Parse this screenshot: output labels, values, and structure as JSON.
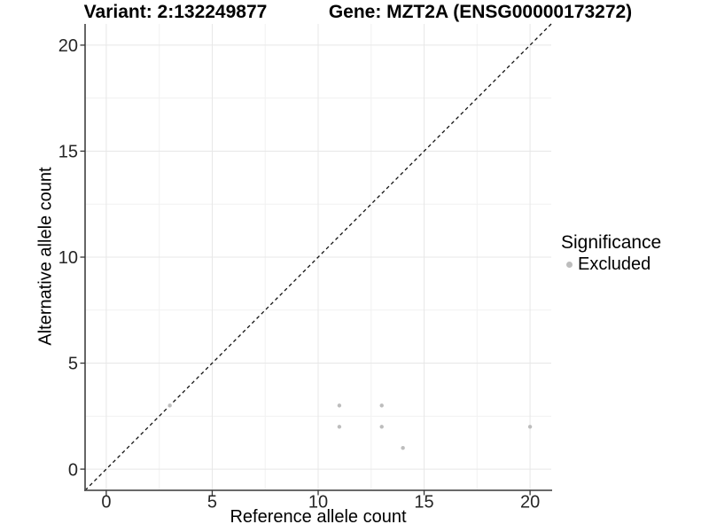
{
  "chart_data": {
    "type": "scatter",
    "titles": {
      "left": "Variant: 2:132249877",
      "right": "Gene: MZT2A (ENSG00000173272)"
    },
    "xlabel": "Reference allele count",
    "ylabel": "Alternative allele count",
    "xlim": [
      -1,
      21
    ],
    "ylim": [
      -1,
      21
    ],
    "x_ticks": [
      0,
      5,
      10,
      15,
      20
    ],
    "y_ticks": [
      0,
      5,
      10,
      15,
      20
    ],
    "x_minor_ticks": [
      2.5,
      7.5,
      12.5,
      17.5
    ],
    "y_minor_ticks": [
      2.5,
      7.5,
      12.5,
      17.5
    ],
    "grid": "major+minor",
    "reference_line": {
      "type": "identity",
      "slope": 1,
      "intercept": 0,
      "style": "dashed",
      "color": "#111111"
    },
    "series": [
      {
        "name": "Excluded",
        "marker": "circle",
        "color": "#bdbdbd",
        "points": [
          [
            3,
            3
          ],
          [
            11,
            2
          ],
          [
            11,
            3
          ],
          [
            13,
            2
          ],
          [
            13,
            3
          ],
          [
            14,
            1
          ],
          [
            20,
            2
          ]
        ]
      }
    ],
    "legend": {
      "title": "Significance",
      "position": "right",
      "items": [
        {
          "label": "Excluded",
          "color": "#bdbdbd"
        }
      ]
    },
    "colors": {
      "background": "#ffffff",
      "grid_major": "#e7e7e7",
      "grid_minor": "#f1f1f1",
      "axis_line": "#555555",
      "tick": "#333333",
      "tick_label": "#262626"
    }
  }
}
